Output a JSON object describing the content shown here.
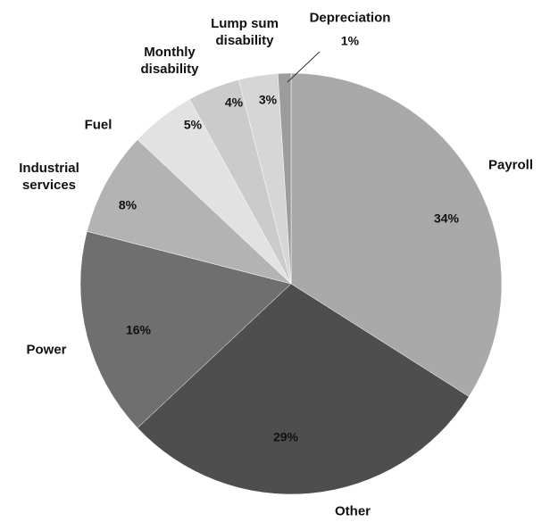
{
  "chart_data": {
    "type": "pie",
    "categories": [
      "Payroll",
      "Other",
      "Power",
      "Industrial\nservices",
      "Fuel",
      "Monthly\ndisability",
      "Lump sum\ndisability",
      "Depreciation"
    ],
    "values": [
      34,
      29,
      16,
      8,
      5,
      4,
      3,
      1
    ],
    "value_labels": [
      "34%",
      "29%",
      "16%",
      "8%",
      "5%",
      "4%",
      "3%",
      "1%"
    ],
    "colors": [
      "#a9a9a9",
      "#4e4e4e",
      "#6f6f6f",
      "#b3b3b3",
      "#e2e2e2",
      "#cbcbcb",
      "#d6d6d6",
      "#9c9c9c"
    ]
  }
}
